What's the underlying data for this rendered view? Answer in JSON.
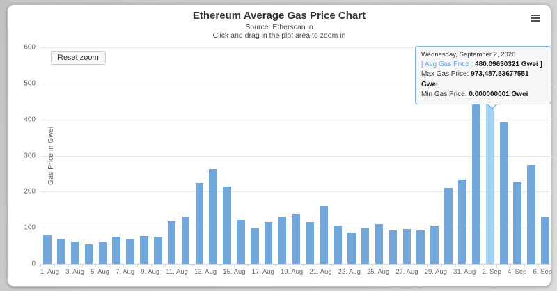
{
  "page": {
    "title": "Ethereum Average Gas Price Chart",
    "subtitle_source": "Source: Etherscan.io",
    "subtitle_hint": "Click and drag in the plot area to zoom in"
  },
  "toolbar": {
    "reset_zoom_label": "Reset zoom",
    "menu_icon": "hamburger-menu-icon"
  },
  "tooltip": {
    "date": "Wednesday, September 2, 2020",
    "avg_prefix": "[ Avg Gas Price : ",
    "avg_value": "480.09630321 Gwei",
    "avg_suffix": " ]",
    "max_label": "Max Gas Price: ",
    "max_value": "973,487.53677551 Gwei",
    "min_label": "Min Gas Price: ",
    "min_value": "0.000000001 Gwei"
  },
  "colors": {
    "bar": "#72a7dc",
    "bar_highlight": "#a6d2f2",
    "tooltip_border": "#7cb5ec",
    "tooltip_series_text": "#6da6e0",
    "gridline": "#e6e6e6",
    "axis_line": "#ccd6eb",
    "axis_label": "#666666"
  },
  "chart_data": {
    "type": "bar",
    "title": "Ethereum Average Gas Price Chart",
    "subtitle": "Source: Etherscan.io",
    "ylabel": "Gas Price in Gwei",
    "ylim": [
      0,
      600
    ],
    "ytick_interval": 100,
    "ytick_labels": [
      "0",
      "100",
      "200",
      "300",
      "400",
      "500",
      "600"
    ],
    "grid": true,
    "categories": [
      "1. Aug",
      "2. Aug",
      "3. Aug",
      "4. Aug",
      "5. Aug",
      "6. Aug",
      "7. Aug",
      "8. Aug",
      "9. Aug",
      "10. Aug",
      "11. Aug",
      "12. Aug",
      "13. Aug",
      "14. Aug",
      "15. Aug",
      "16. Aug",
      "17. Aug",
      "18. Aug",
      "19. Aug",
      "20. Aug",
      "21. Aug",
      "22. Aug",
      "23. Aug",
      "24. Aug",
      "25. Aug",
      "26. Aug",
      "27. Aug",
      "28. Aug",
      "29. Aug",
      "30. Aug",
      "31. Aug",
      "1. Sep",
      "2. Sep",
      "3. Sep",
      "4. Sep",
      "5. Sep",
      "6. Sep"
    ],
    "visible_xtick_labels": [
      "1. Aug",
      "3. Aug",
      "5. Aug",
      "7. Aug",
      "9. Aug",
      "11. Aug",
      "13. Aug",
      "15. Aug",
      "17. Aug",
      "19. Aug",
      "21. Aug",
      "23. Aug",
      "25. Aug",
      "27. Aug",
      "29. Aug",
      "31. Aug",
      "2. Sep",
      "4. Sep",
      "6. Sep"
    ],
    "xtick_label_step": 2,
    "values": [
      80,
      70,
      61,
      55,
      60,
      75,
      68,
      78,
      76,
      118,
      132,
      223,
      263,
      215,
      122,
      101,
      115,
      132,
      138,
      116,
      161,
      107,
      87,
      99,
      110,
      93,
      96,
      92,
      104,
      210,
      234,
      450,
      480.09630321,
      393,
      228,
      274,
      130
    ],
    "highlighted_index": 32,
    "highlighted_category": "2. Sep",
    "series_name": "Avg Gas Price"
  }
}
